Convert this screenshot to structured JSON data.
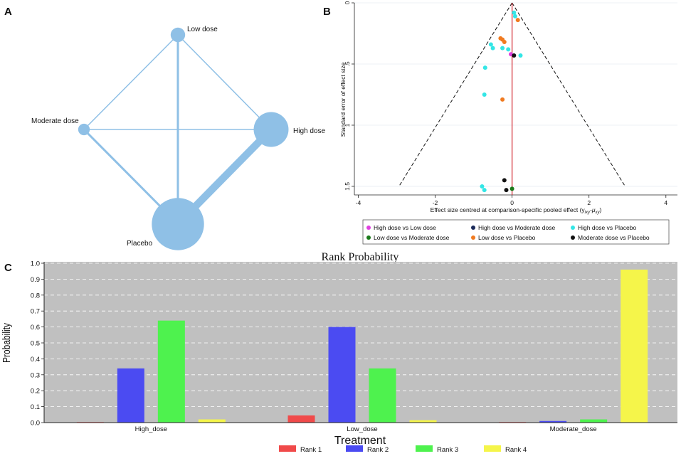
{
  "panels": {
    "a": "A",
    "b": "B",
    "c": "C"
  },
  "colors": {
    "network_node": "#8fc0e6",
    "network_edge": "#8fc0e6",
    "rank1": "#f04a4a",
    "rank2": "#4b4bf2",
    "rank3": "#4ef24e",
    "rank4": "#f5f54a",
    "plot_bg": "#c0c0c0",
    "funnel_line": "#111111",
    "zero_line": "#d0202b"
  },
  "chart_data": [
    {
      "type": "network",
      "panel": "A",
      "nodes": [
        {
          "name": "Low dose",
          "size": 1
        },
        {
          "name": "Moderate dose",
          "size": 0.8
        },
        {
          "name": "High dose",
          "size": 2.4
        },
        {
          "name": "Placebo",
          "size": 3.6
        }
      ],
      "edges": [
        {
          "from": "Low dose",
          "to": "Moderate dose",
          "weight": 1
        },
        {
          "from": "Low dose",
          "to": "High dose",
          "weight": 1
        },
        {
          "from": "Low dose",
          "to": "Placebo",
          "weight": 2
        },
        {
          "from": "Moderate dose",
          "to": "High dose",
          "weight": 1
        },
        {
          "from": "Moderate dose",
          "to": "Placebo",
          "weight": 2
        },
        {
          "from": "High dose",
          "to": "Placebo",
          "weight": 7
        }
      ]
    },
    {
      "type": "scatter",
      "panel": "B",
      "xlabel": "Effect size centred at comparison-specific pooled effect (y",
      "xlabel_sub": "ixy",
      "xlabel_sep": "-μ",
      "xlabel_sub2": "xy",
      "xlabel_close": ")",
      "ylabel": "Standard error of effect size",
      "xlim": [
        -4,
        4
      ],
      "ylim": [
        0,
        1.5
      ],
      "y_reversed": true,
      "xticks": [
        -4,
        -2,
        0,
        2,
        4
      ],
      "xtick_labels": [
        "-4",
        "-2",
        "0",
        "2",
        "4"
      ],
      "yticks": [
        0,
        0.5,
        1,
        1.5
      ],
      "ytick_labels": [
        "0",
        ".5",
        "1",
        "1.5"
      ],
      "funnel_limit_at_max_se": 2.94,
      "series": [
        {
          "name": "High dose vs Low dose",
          "color": "#e040e0",
          "points": [
            [
              -0.03,
              0.42
            ]
          ]
        },
        {
          "name": "High dose vs Moderate dose",
          "color": "#1a2a5a",
          "points": []
        },
        {
          "name": "High dose vs Placebo",
          "color": "#33e6e6",
          "points": [
            [
              0.05,
              0.08
            ],
            [
              0.08,
              0.11
            ],
            [
              -0.55,
              0.34
            ],
            [
              -0.5,
              0.37
            ],
            [
              -0.25,
              0.37
            ],
            [
              -0.1,
              0.38
            ],
            [
              0.22,
              0.43
            ],
            [
              -0.7,
              0.53
            ],
            [
              -0.72,
              0.75
            ],
            [
              -0.78,
              1.5
            ],
            [
              -0.72,
              1.53
            ]
          ]
        },
        {
          "name": "Low dose vs Moderate dose",
          "color": "#1a7a1a",
          "points": [
            [
              0,
              1.52
            ]
          ]
        },
        {
          "name": "Low dose vs Placebo",
          "color": "#f07a20",
          "points": [
            [
              -0.3,
              0.29
            ],
            [
              -0.25,
              0.3
            ],
            [
              -0.2,
              0.32
            ],
            [
              0.15,
              0.14
            ],
            [
              -0.25,
              0.79
            ]
          ]
        },
        {
          "name": "Moderate dose vs Placebo",
          "color": "#111111",
          "points": [
            [
              0.05,
              0.43
            ],
            [
              -0.2,
              1.45
            ],
            [
              -0.15,
              1.53
            ]
          ]
        }
      ]
    },
    {
      "type": "bar",
      "panel": "C",
      "title": "Rank Probability",
      "xlabel": "Treatment",
      "ylabel": "Probability",
      "categories": [
        "High_dose",
        "Low_dose",
        "Moderate_dose"
      ],
      "ylim": [
        0,
        1.0
      ],
      "yticks": [
        "0.0",
        "0.1",
        "0.2",
        "0.3",
        "0.4",
        "0.5",
        "0.6",
        "0.7",
        "0.8",
        "0.9",
        "1.0"
      ],
      "series": [
        {
          "name": "Rank 1",
          "values": [
            0.0,
            0.045,
            0.0
          ]
        },
        {
          "name": "Rank 2",
          "values": [
            0.34,
            0.6,
            0.01
          ]
        },
        {
          "name": "Rank 3",
          "values": [
            0.64,
            0.34,
            0.02
          ]
        },
        {
          "name": "Rank 4",
          "values": [
            0.02,
            0.015,
            0.96
          ]
        }
      ]
    }
  ]
}
